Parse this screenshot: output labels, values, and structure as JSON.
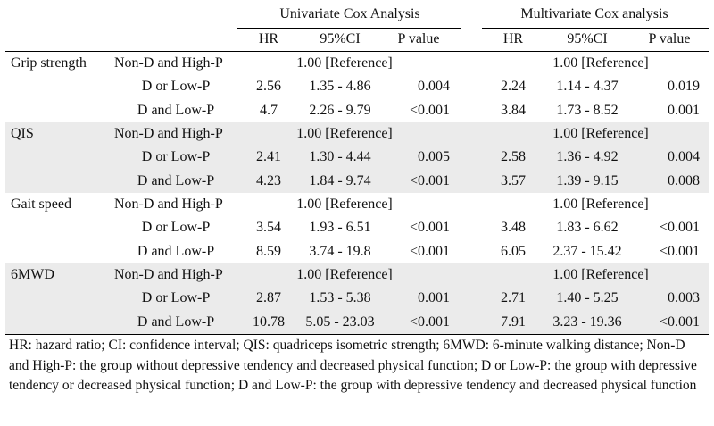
{
  "header": {
    "univariate_title": "Univariate Cox Analysis",
    "multivariate_title": "Multivariate Cox analysis",
    "columns": [
      "HR",
      "95%CI",
      "P value",
      "HR",
      "95%CI",
      "P value"
    ]
  },
  "measures": [
    {
      "name": "Grip strength",
      "rows": [
        {
          "group": "Non-D and High-P",
          "uni_ref": "1.00 [Reference]",
          "multi_ref": "1.00 [Reference]"
        },
        {
          "group": "D or Low-P",
          "uni_hr": "2.56",
          "uni_ci": "1.35 - 4.86",
          "uni_p": "0.004",
          "multi_hr": "2.24",
          "multi_ci": "1.14 - 4.37",
          "multi_p": "0.019"
        },
        {
          "group": "D and Low-P",
          "uni_hr": "4.7",
          "uni_ci": "2.26 - 9.79",
          "uni_p": "<0.001",
          "multi_hr": "3.84",
          "multi_ci": "1.73 - 8.52",
          "multi_p": "0.001"
        }
      ]
    },
    {
      "name": "QIS",
      "rows": [
        {
          "group": "Non-D and High-P",
          "uni_ref": "1.00 [Reference]",
          "multi_ref": "1.00 [Reference]"
        },
        {
          "group": "D or Low-P",
          "uni_hr": "2.41",
          "uni_ci": "1.30 - 4.44",
          "uni_p": "0.005",
          "multi_hr": "2.58",
          "multi_ci": "1.36 - 4.92",
          "multi_p": "0.004"
        },
        {
          "group": "D and Low-P",
          "uni_hr": "4.23",
          "uni_ci": "1.84 - 9.74",
          "uni_p": "<0.001",
          "multi_hr": "3.57",
          "multi_ci": "1.39 - 9.15",
          "multi_p": "0.008"
        }
      ]
    },
    {
      "name": "Gait speed",
      "rows": [
        {
          "group": "Non-D and High-P",
          "uni_ref": "1.00 [Reference]",
          "multi_ref": "1.00 [Reference]"
        },
        {
          "group": "D or Low-P",
          "uni_hr": "3.54",
          "uni_ci": "1.93 - 6.51",
          "uni_p": "<0.001",
          "multi_hr": "3.48",
          "multi_ci": "1.83 - 6.62",
          "multi_p": "<0.001"
        },
        {
          "group": "D and Low-P",
          "uni_hr": "8.59",
          "uni_ci": "3.74 - 19.8",
          "uni_p": "<0.001",
          "multi_hr": "6.05",
          "multi_ci": "2.37 - 15.42",
          "multi_p": "<0.001"
        }
      ]
    },
    {
      "name": "6MWD",
      "rows": [
        {
          "group": "Non-D and High-P",
          "uni_ref": "1.00 [Reference]",
          "multi_ref": "1.00 [Reference]"
        },
        {
          "group": "D or Low-P",
          "uni_hr": "2.87",
          "uni_ci": "1.53 - 5.38",
          "uni_p": "0.001",
          "multi_hr": "2.71",
          "multi_ci": "1.40 - 5.25",
          "multi_p": "0.003"
        },
        {
          "group": "D and Low-P",
          "uni_hr": "10.78",
          "uni_ci": "5.05 - 23.03",
          "uni_p": "<0.001",
          "multi_hr": "7.91",
          "multi_ci": "3.23 - 19.36",
          "multi_p": "<0.001"
        }
      ]
    }
  ],
  "footnote": "HR: hazard ratio; CI: confidence interval; QIS: quadriceps isometric strength; 6MWD: 6-minute walking distance; Non-D and High-P: the group without depressive tendency and decreased physical function; D or Low-P: the group with depressive tendency or decreased physical function; D and Low-P: the group with depressive tendency and decreased physical function",
  "colors": {
    "band": "#ebebeb",
    "text": "#111111",
    "rule": "#000000"
  }
}
